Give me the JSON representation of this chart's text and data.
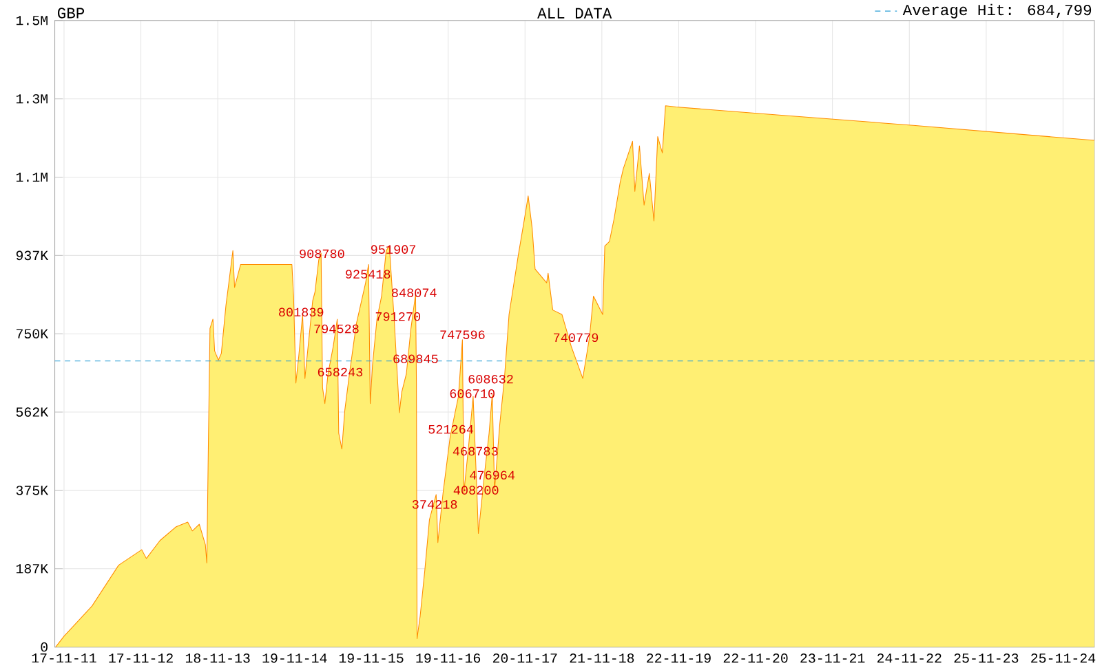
{
  "chart_data": {
    "type": "area",
    "title": "GBP",
    "subtitle": "ALL DATA",
    "x": [
      "2011-10-08",
      "2011-11-17",
      "2012-03-29",
      "2012-08-03",
      "2012-11-21",
      "2012-12-13",
      "2013-02-16",
      "2013-05-04",
      "2013-06-28",
      "2013-07-20",
      "2013-08-22",
      "2013-09-20",
      "2013-09-27",
      "2013-10-04",
      "2013-10-12",
      "2013-10-26",
      "2013-11-03",
      "2013-11-21",
      "2013-12-05",
      "2013-12-27",
      "2014-01-07",
      "2014-01-29",
      "2014-02-06",
      "2014-03-07",
      "2014-11-06",
      "2014-11-14",
      "2014-11-25",
      "2014-12-09",
      "2014-12-27",
      "2015-01-07",
      "2015-02-13",
      "2015-02-24",
      "2015-03-14",
      "2015-03-25",
      "2015-04-01",
      "2015-04-12",
      "2015-04-27",
      "2015-05-22",
      "2015-06-10",
      "2015-06-17",
      "2015-07-02",
      "2015-07-16",
      "2015-08-07",
      "2015-09-09",
      "2015-10-23",
      "2015-11-06",
      "2015-11-14",
      "2015-11-25",
      "2015-12-16",
      "2016-01-07",
      "2016-01-29",
      "2016-02-13",
      "2016-03-07",
      "2016-04-01",
      "2016-04-12",
      "2016-05-04",
      "2016-05-26",
      "2016-06-17",
      "2016-06-21",
      "2016-06-24",
      "2016-07-09",
      "2016-07-31",
      "2016-08-22",
      "2016-09-23",
      "2016-10-01",
      "2016-10-26",
      "2016-11-28",
      "2016-12-20",
      "2017-01-07",
      "2017-01-26",
      "2017-02-02",
      "2017-02-24",
      "2017-03-18",
      "2017-04-05",
      "2017-04-12",
      "2017-05-11",
      "2017-06-02",
      "2017-06-17",
      "2017-06-28",
      "2017-07-23",
      "2017-08-14",
      "2017-09-05",
      "2017-10-19",
      "2017-11-21",
      "2017-12-05",
      "2017-12-24",
      "2018-01-07",
      "2018-03-03",
      "2018-03-10",
      "2018-04-01",
      "2018-05-15",
      "2018-06-28",
      "2018-08-22",
      "2018-09-23",
      "2018-10-12",
      "2018-11-25",
      "2018-12-05",
      "2018-12-27",
      "2019-01-18",
      "2019-02-16",
      "2019-03-03",
      "2019-04-16",
      "2019-04-27",
      "2019-05-19",
      "2019-06-10",
      "2019-07-05",
      "2019-07-27",
      "2019-08-14",
      "2019-09-05",
      "2019-09-20",
      "2019-11-10",
      "2021-03-03",
      "2022-12-13",
      "2025-04-23"
    ],
    "series": [
      {
        "color": "#ff8c00",
        "values": [
          0,
          26000,
          98000,
          196000,
          233000,
          212000,
          255000,
          288000,
          299000,
          278000,
          294000,
          245000,
          201000,
          474000,
          763000,
          785000,
          709000,
          687000,
          703000,
          818000,
          861000,
          949000,
          861000,
          916000,
          916000,
          840000,
          632000,
          698000,
          796000,
          643000,
          829000,
          850000,
          927000,
          943000,
          621000,
          583000,
          654000,
          720000,
          785000,
          512000,
          474000,
          567000,
          654000,
          774000,
          872000,
          916000,
          583000,
          676000,
          785000,
          840000,
          949000,
          960000,
          785000,
          561000,
          610000,
          654000,
          763000,
          845000,
          632000,
          20000,
          75000,
          184000,
          305000,
          365000,
          250000,
          370000,
          501000,
          556000,
          600000,
          736000,
          370000,
          479000,
          600000,
          370000,
          272000,
          414000,
          512000,
          605000,
          376000,
          534000,
          643000,
          796000,
          938000,
          1036000,
          1080000,
          1003000,
          905000,
          872000,
          895000,
          807000,
          796000,
          720000,
          643000,
          741000,
          840000,
          796000,
          960000,
          971000,
          1025000,
          1112000,
          1145000,
          1211000,
          1091000,
          1200000,
          1058000,
          1134000,
          1020000,
          1222000,
          1183000,
          1296000,
          1293000,
          1274000,
          1249000,
          1213000
        ]
      }
    ],
    "xlim": [
      "2011-10-04",
      "2025-04-23"
    ],
    "xticks": [
      {
        "value": "2011-11-17",
        "label": "17-11-11"
      },
      {
        "value": "2012-11-17",
        "label": "17-11-12"
      },
      {
        "value": "2013-11-18",
        "label": "18-11-13"
      },
      {
        "value": "2014-11-19",
        "label": "19-11-14"
      },
      {
        "value": "2015-11-19",
        "label": "19-11-15"
      },
      {
        "value": "2016-11-19",
        "label": "19-11-16"
      },
      {
        "value": "2017-11-20",
        "label": "20-11-17"
      },
      {
        "value": "2018-11-21",
        "label": "21-11-18"
      },
      {
        "value": "2019-11-22",
        "label": "22-11-19"
      },
      {
        "value": "2020-11-22",
        "label": "22-11-20"
      },
      {
        "value": "2021-11-23",
        "label": "23-11-21"
      },
      {
        "value": "2022-11-24",
        "label": "24-11-22"
      },
      {
        "value": "2023-11-25",
        "label": "25-11-23"
      },
      {
        "value": "2024-11-25",
        "label": "25-11-24"
      }
    ],
    "ylim": [
      0,
      1500000
    ],
    "yticks": [
      0,
      {
        "value": 187500,
        "label": "187K"
      },
      {
        "value": 375000,
        "label": "375K"
      },
      {
        "value": 562500,
        "label": "562K"
      },
      {
        "value": 750000,
        "label": "750K"
      },
      {
        "value": 937500,
        "label": "937K"
      },
      {
        "value": 1125000,
        "label": "1.1M"
      },
      {
        "value": 1312500,
        "label": "1.3M"
      },
      {
        "value": 1500000,
        "label": "1.5M"
      }
    ],
    "grid": true,
    "legend": "top right",
    "ref_lines": [
      {
        "axis": "y",
        "value": 684799,
        "label": "Average Hit: 684,799",
        "color": "#2a9fd6",
        "line_style": "dashed"
      }
    ],
    "annotations": [
      {
        "text": "951907",
        "x": "2016-03-03",
        "y": 951907
      },
      {
        "text": "925418",
        "x": "2015-11-03",
        "y": 925418
      },
      {
        "text": "908780",
        "x": "2015-03-29",
        "y": 908780
      },
      {
        "text": "848074",
        "x": "2016-06-10",
        "y": 848074
      },
      {
        "text": "801839",
        "x": "2014-12-20",
        "y": 801839
      },
      {
        "text": "794528",
        "x": "2015-06-06",
        "y": 794528
      },
      {
        "text": "791270",
        "x": "2016-03-25",
        "y": 791270
      },
      {
        "text": "747596",
        "x": "2017-01-26",
        "y": 747596
      },
      {
        "text": "740779",
        "x": "2018-07-20",
        "y": 740779
      },
      {
        "text": "689845",
        "x": "2016-06-17",
        "y": 689845
      },
      {
        "text": "658243",
        "x": "2015-06-24",
        "y": 658243
      },
      {
        "text": "606710",
        "x": "2017-03-14",
        "y": 606710
      },
      {
        "text": "608632",
        "x": "2017-06-10",
        "y": 608632
      },
      {
        "text": "521264",
        "x": "2016-12-02",
        "y": 521264
      },
      {
        "text": "468783",
        "x": "2017-03-29",
        "y": 468783
      },
      {
        "text": "476964",
        "x": "2017-06-17",
        "y": 476964
      },
      {
        "text": "408200",
        "x": "2017-04-01",
        "y": 408200
      },
      {
        "text": "374218",
        "x": "2016-09-16",
        "y": 374218
      }
    ]
  }
}
